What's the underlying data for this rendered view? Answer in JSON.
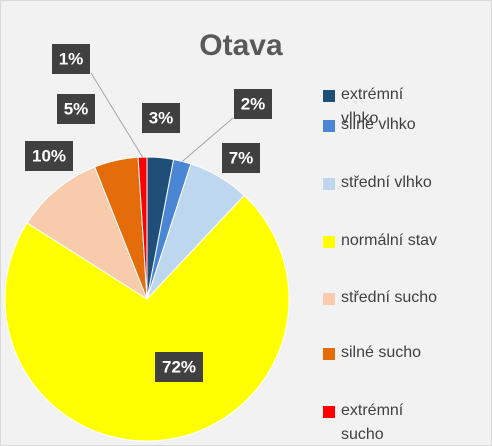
{
  "chart_data": {
    "type": "pie",
    "title": "Otava",
    "categories": [
      "extrémní vlhko",
      "silné vlhko",
      "střední vlhko",
      "normální stav",
      "střední sucho",
      "silné sucho",
      "extrémní sucho"
    ],
    "values": [
      3,
      2,
      7,
      72,
      10,
      5,
      1
    ],
    "value_labels": [
      "3%",
      "2%",
      "7%",
      "72%",
      "10%",
      "5%",
      "1%"
    ],
    "colors": [
      "#1f4e79",
      "#4a86d4",
      "#bdd7ee",
      "#ffff00",
      "#f8cbad",
      "#e46c0a",
      "#ff0000"
    ],
    "legend": "right"
  }
}
